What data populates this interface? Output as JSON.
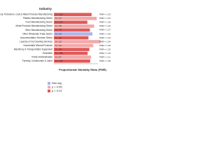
{
  "chart_data": {
    "type": "bar",
    "orientation": "horizontal",
    "title": "Industry",
    "x_label": "Proportionate Mortality Ratio (PMR)",
    "categories": [
      "Chemical, Petroleum, Coal & Allied Products Manufacturing",
      "Plastics Manufacturing Sector",
      "Food Manufacturing Sector",
      "Metal Products Manufacturing Sector",
      "Other Manufacturing Sector",
      "Other Wholesale Trade Sector",
      "Accommodation Services Sector",
      "Laundry & Dry Cleaning Services",
      "Nonmetallic Mineral Products",
      "Machinery & Transportation Equipment",
      "Education",
      "Public Administration",
      "Forestry, Construction & Labor"
    ],
    "values": [
      1.33,
      1.51,
      1.18,
      1.42,
      1.27,
      1.36,
      1.22,
      1.64,
      1.39,
      1.25,
      1.19,
      1.31,
      1.28
    ],
    "value_labels": [
      "PMR = 1.33",
      "PMR = 1.51",
      "PMR = 1.18",
      "PMR = 1.42",
      "PMR = 1.27",
      "PMR = 1.36",
      "PMR = 1.22",
      "PMR = 1.64",
      "PMR = 1.39",
      "PMR = 1.25",
      "PMR = 1.19",
      "PMR = 1.31",
      "PMR = 1.28"
    ],
    "n_labels": [
      "N = 102",
      "N = 37",
      "N = 214",
      "N = 58",
      "N = 76",
      "N = 23",
      "N = 31",
      "N = 12",
      "N = 44",
      "N = 95",
      "N = 188",
      "N = 67",
      "N = 140"
    ],
    "significance": [
      2,
      1,
      2,
      1,
      2,
      0,
      2,
      1,
      1,
      2,
      2,
      1,
      2
    ],
    "legend": [
      {
        "name": "Non-sig",
        "color": "#b0b4e8"
      },
      {
        "name": "p < 0.05",
        "color": "#f2a9a9"
      },
      {
        "name": "p < 0.01",
        "color": "#e05a5a"
      }
    ],
    "xlim": [
      0,
      2
    ]
  }
}
